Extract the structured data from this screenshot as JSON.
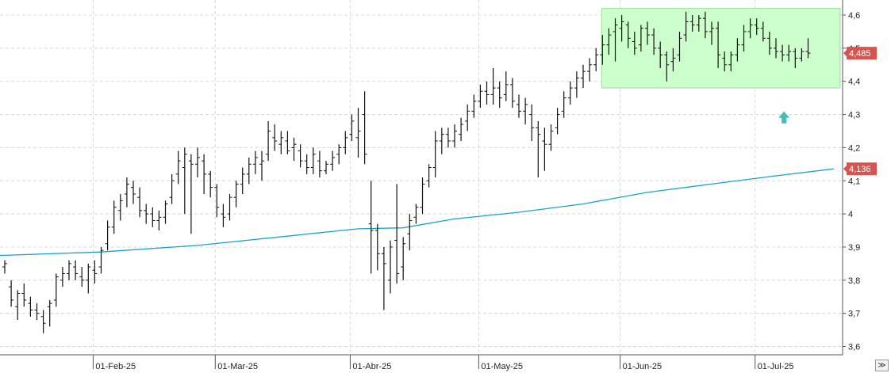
{
  "chart_data": {
    "type": "ohlc",
    "title": "",
    "xlabel": "",
    "ylabel": "",
    "ylim": [
      3.57,
      4.64
    ],
    "yticks": [
      3.6,
      3.7,
      3.8,
      3.9,
      4.0,
      4.1,
      4.2,
      4.3,
      4.4,
      4.5,
      4.6
    ],
    "ytick_labels": [
      "3,6",
      "3,7",
      "3,8",
      "3,9",
      "4",
      "4,1",
      "4,2",
      "4,3",
      "4,4",
      "4,5",
      "4,6"
    ],
    "xtick_labels": [
      {
        "label": "01-Feb-25",
        "index": 14
      },
      {
        "label": "01-Mar-25",
        "index": 33
      },
      {
        "label": "01-Abr-25",
        "index": 54
      },
      {
        "label": "01-May-25",
        "index": 74
      },
      {
        "label": "01-Jun-25",
        "index": 96
      },
      {
        "label": "01-Jul-25",
        "index": 117
      }
    ],
    "grid": true,
    "last_price_label": "4,485",
    "last_price": 4.485,
    "ma_label": "4,136",
    "ma_value": 4.136,
    "colors": {
      "bars": "#111111",
      "ma_line": "#1aa3c8",
      "zone_fill": "#ccffcc",
      "zone_border": "#99dd99",
      "price_tag": "#d9534f",
      "arrow": "#3cc0b8",
      "grid": "#d8d8d8"
    },
    "range_zone": {
      "from_index": 93,
      "to_index": 129,
      "low": 4.38,
      "high": 4.62
    },
    "arrow_marker": {
      "index": 121,
      "value": 4.29,
      "direction": "up"
    },
    "ohlc": [
      [
        3.84,
        3.86,
        3.82,
        3.85
      ],
      [
        3.78,
        3.8,
        3.72,
        3.74
      ],
      [
        3.72,
        3.77,
        3.68,
        3.76
      ],
      [
        3.76,
        3.79,
        3.72,
        3.74
      ],
      [
        3.73,
        3.75,
        3.69,
        3.71
      ],
      [
        3.71,
        3.73,
        3.68,
        3.7
      ],
      [
        3.69,
        3.71,
        3.64,
        3.67
      ],
      [
        3.72,
        3.74,
        3.66,
        3.73
      ],
      [
        3.74,
        3.82,
        3.72,
        3.81
      ],
      [
        3.8,
        3.84,
        3.78,
        3.82
      ],
      [
        3.82,
        3.86,
        3.8,
        3.85
      ],
      [
        3.84,
        3.86,
        3.8,
        3.82
      ],
      [
        3.81,
        3.84,
        3.78,
        3.8
      ],
      [
        3.8,
        3.85,
        3.76,
        3.84
      ],
      [
        3.83,
        3.86,
        3.79,
        3.82
      ],
      [
        3.84,
        3.9,
        3.82,
        3.89
      ],
      [
        3.91,
        3.98,
        3.89,
        3.96
      ],
      [
        3.96,
        4.04,
        3.94,
        4.02
      ],
      [
        4.01,
        4.06,
        3.98,
        4.04
      ],
      [
        4.06,
        4.11,
        4.02,
        4.09
      ],
      [
        4.08,
        4.1,
        4.03,
        4.06
      ],
      [
        4.05,
        4.08,
        3.99,
        4.01
      ],
      [
        4.01,
        4.03,
        3.97,
        4.0
      ],
      [
        4.0,
        4.02,
        3.96,
        3.98
      ],
      [
        3.98,
        4.01,
        3.95,
        3.99
      ],
      [
        3.99,
        4.04,
        3.97,
        4.03
      ],
      [
        4.05,
        4.12,
        4.03,
        4.1
      ],
      [
        4.12,
        4.19,
        4.09,
        4.16
      ],
      [
        4.14,
        4.2,
        4.0,
        4.18
      ],
      [
        4.16,
        4.18,
        3.94,
        4.15
      ],
      [
        4.15,
        4.2,
        4.11,
        4.17
      ],
      [
        4.16,
        4.18,
        4.06,
        4.12
      ],
      [
        4.12,
        4.13,
        4.05,
        4.08
      ],
      [
        4.08,
        4.09,
        3.99,
        4.02
      ],
      [
        4.0,
        4.03,
        3.96,
        3.99
      ],
      [
        4.0,
        4.06,
        3.98,
        4.05
      ],
      [
        4.05,
        4.1,
        4.02,
        4.09
      ],
      [
        4.09,
        4.14,
        4.06,
        4.12
      ],
      [
        4.12,
        4.17,
        4.09,
        4.15
      ],
      [
        4.15,
        4.19,
        4.12,
        4.17
      ],
      [
        4.15,
        4.19,
        4.1,
        4.16
      ],
      [
        4.18,
        4.28,
        4.16,
        4.25
      ],
      [
        4.23,
        4.27,
        4.19,
        4.22
      ],
      [
        4.21,
        4.25,
        4.18,
        4.23
      ],
      [
        4.22,
        4.25,
        4.18,
        4.19
      ],
      [
        4.2,
        4.23,
        4.16,
        4.21
      ],
      [
        4.19,
        4.21,
        4.14,
        4.16
      ],
      [
        4.16,
        4.18,
        4.12,
        4.14
      ],
      [
        4.14,
        4.2,
        4.12,
        4.18
      ],
      [
        4.16,
        4.19,
        4.11,
        4.13
      ],
      [
        4.13,
        4.16,
        4.12,
        4.15
      ],
      [
        4.15,
        4.19,
        4.13,
        4.17
      ],
      [
        4.18,
        4.21,
        4.15,
        4.2
      ],
      [
        4.2,
        4.25,
        4.18,
        4.23
      ],
      [
        4.24,
        4.3,
        4.22,
        4.28
      ],
      [
        4.23,
        4.32,
        4.17,
        4.25
      ],
      [
        4.3,
        4.37,
        4.15,
        4.18
      ],
      [
        3.97,
        4.1,
        3.82,
        3.95
      ],
      [
        3.95,
        3.97,
        3.83,
        3.88
      ],
      [
        3.88,
        3.9,
        3.71,
        3.85
      ],
      [
        3.8,
        3.92,
        3.76,
        3.9
      ],
      [
        3.92,
        4.09,
        3.79,
        3.82
      ],
      [
        3.84,
        3.93,
        3.8,
        3.91
      ],
      [
        3.94,
        4.0,
        3.89,
        3.98
      ],
      [
        3.99,
        4.03,
        3.97,
        4.02
      ],
      [
        4.02,
        4.11,
        4.0,
        4.09
      ],
      [
        4.1,
        4.15,
        4.08,
        4.14
      ],
      [
        4.14,
        4.25,
        4.11,
        4.22
      ],
      [
        4.22,
        4.26,
        4.18,
        4.24
      ],
      [
        4.24,
        4.26,
        4.2,
        4.22
      ],
      [
        4.22,
        4.27,
        4.2,
        4.25
      ],
      [
        4.24,
        4.29,
        4.22,
        4.27
      ],
      [
        4.28,
        4.33,
        4.25,
        4.31
      ],
      [
        4.31,
        4.36,
        4.29,
        4.34
      ],
      [
        4.34,
        4.39,
        4.32,
        4.37
      ],
      [
        4.37,
        4.4,
        4.33,
        4.36
      ],
      [
        4.36,
        4.44,
        4.33,
        4.38
      ],
      [
        4.38,
        4.4,
        4.32,
        4.35
      ],
      [
        4.36,
        4.43,
        4.34,
        4.39
      ],
      [
        4.39,
        4.41,
        4.32,
        4.34
      ],
      [
        4.33,
        4.36,
        4.29,
        4.31
      ],
      [
        4.31,
        4.35,
        4.27,
        4.33
      ],
      [
        4.3,
        4.33,
        4.22,
        4.26
      ],
      [
        4.26,
        4.28,
        4.11,
        4.24
      ],
      [
        4.22,
        4.26,
        4.13,
        4.21
      ],
      [
        4.21,
        4.27,
        4.19,
        4.25
      ],
      [
        4.26,
        4.32,
        4.24,
        4.3
      ],
      [
        4.31,
        4.37,
        4.29,
        4.35
      ],
      [
        4.35,
        4.4,
        4.33,
        4.38
      ],
      [
        4.38,
        4.43,
        4.35,
        4.41
      ],
      [
        4.41,
        4.45,
        4.38,
        4.43
      ],
      [
        4.43,
        4.47,
        4.4,
        4.45
      ],
      [
        4.45,
        4.5,
        4.43,
        4.48
      ],
      [
        4.48,
        4.54,
        4.45,
        4.51
      ],
      [
        4.51,
        4.56,
        4.48,
        4.54
      ],
      [
        4.55,
        4.59,
        4.46,
        4.57
      ],
      [
        4.56,
        4.6,
        4.52,
        4.58
      ],
      [
        4.57,
        4.58,
        4.5,
        4.53
      ],
      [
        4.52,
        4.55,
        4.48,
        4.5
      ],
      [
        4.51,
        4.57,
        4.49,
        4.56
      ],
      [
        4.56,
        4.58,
        4.51,
        4.54
      ],
      [
        4.54,
        4.56,
        4.48,
        4.5
      ],
      [
        4.5,
        4.52,
        4.44,
        4.48
      ],
      [
        4.48,
        4.49,
        4.4,
        4.45
      ],
      [
        4.46,
        4.5,
        4.43,
        4.47
      ],
      [
        4.48,
        4.55,
        4.46,
        4.53
      ],
      [
        4.54,
        4.61,
        4.52,
        4.58
      ],
      [
        4.58,
        4.6,
        4.55,
        4.57
      ],
      [
        4.57,
        4.6,
        4.55,
        4.59
      ],
      [
        4.59,
        4.61,
        4.53,
        4.55
      ],
      [
        4.55,
        4.58,
        4.51,
        4.56
      ],
      [
        4.56,
        4.58,
        4.44,
        4.48
      ],
      [
        4.47,
        4.49,
        4.43,
        4.45
      ],
      [
        4.45,
        4.49,
        4.43,
        4.48
      ],
      [
        4.48,
        4.53,
        4.46,
        4.51
      ],
      [
        4.51,
        4.57,
        4.49,
        4.55
      ],
      [
        4.55,
        4.59,
        4.53,
        4.57
      ],
      [
        4.57,
        4.59,
        4.54,
        4.56
      ],
      [
        4.56,
        4.58,
        4.52,
        4.53
      ],
      [
        4.53,
        4.55,
        4.48,
        4.5
      ],
      [
        4.5,
        4.53,
        4.47,
        4.49
      ],
      [
        4.49,
        4.51,
        4.46,
        4.48
      ],
      [
        4.48,
        4.51,
        4.46,
        4.49
      ],
      [
        4.49,
        4.5,
        4.44,
        4.47
      ],
      [
        4.47,
        4.5,
        4.46,
        4.49
      ],
      [
        4.49,
        4.53,
        4.47,
        4.485
      ]
    ],
    "moving_average": [
      [
        0,
        3.875
      ],
      [
        15,
        3.885
      ],
      [
        30,
        3.905
      ],
      [
        45,
        3.935
      ],
      [
        55,
        3.955
      ],
      [
        62,
        3.958
      ],
      [
        70,
        3.985
      ],
      [
        80,
        4.005
      ],
      [
        90,
        4.03
      ],
      [
        100,
        4.065
      ],
      [
        110,
        4.09
      ],
      [
        120,
        4.115
      ],
      [
        129,
        4.136
      ]
    ]
  }
}
